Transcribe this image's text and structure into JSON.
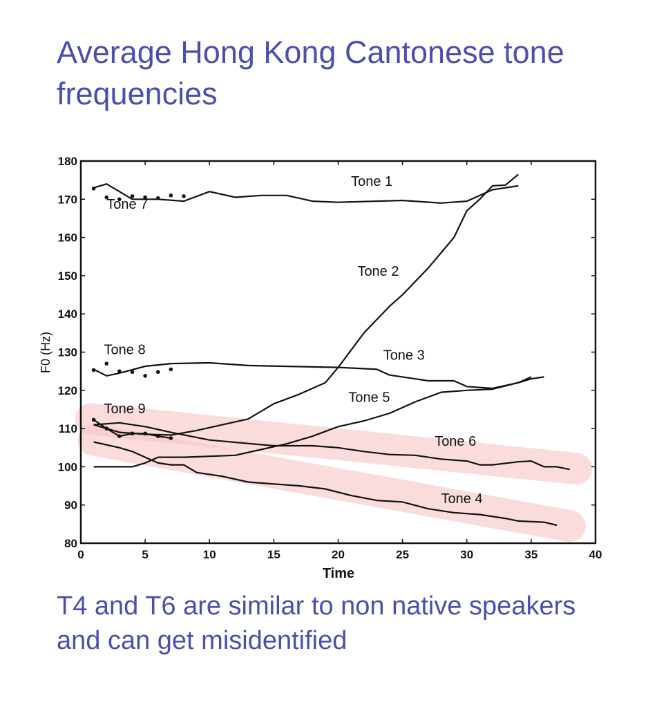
{
  "slide": {
    "title": "Average Hong Kong Cantonese tone frequencies",
    "caption": "T4 and T6 are similar to non native speakers and can get misidentified",
    "text_color": "#4a4fae",
    "highlight_color": "#f9c6c6"
  },
  "chart_data": {
    "type": "line",
    "title": "",
    "xlabel": "Time",
    "ylabel": "F0 (Hz)",
    "xlim": [
      0,
      40
    ],
    "ylim": [
      80,
      180
    ],
    "xticks": [
      0,
      5,
      10,
      15,
      20,
      25,
      30,
      35,
      40
    ],
    "yticks": [
      80,
      90,
      100,
      110,
      120,
      130,
      140,
      150,
      160,
      170,
      180
    ],
    "grid": false,
    "series": [
      {
        "name": "Tone 1",
        "style": "line",
        "label_at": [
          21,
          173.5
        ],
        "x": [
          1,
          2,
          3,
          4,
          6,
          8,
          10,
          12,
          14,
          16,
          18,
          20,
          25,
          28,
          30,
          32,
          34
        ],
        "y": [
          173,
          174,
          172,
          170,
          170,
          169.5,
          172,
          170.5,
          171,
          171,
          169.5,
          169.2,
          169.7,
          169,
          169.5,
          172.5,
          173.5
        ]
      },
      {
        "name": "Tone 7",
        "style": "dots",
        "label_at": [
          2,
          167.5
        ],
        "x": [
          1,
          2,
          3,
          4,
          5,
          6,
          7,
          8
        ],
        "y": [
          172.8,
          170.5,
          170,
          170.8,
          170.5,
          170.3,
          171,
          170.8
        ]
      },
      {
        "name": "Tone 2",
        "style": "line",
        "label_at": [
          21.5,
          150
        ],
        "x": [
          1,
          3,
          5,
          7,
          9,
          11,
          13,
          15,
          17,
          19,
          20,
          22,
          24,
          25,
          27,
          29,
          30,
          31,
          32,
          33,
          34
        ],
        "y": [
          111,
          109,
          108.5,
          108.3,
          109.5,
          111,
          112.5,
          116.5,
          119,
          122,
          126,
          135,
          142,
          145,
          152,
          160,
          167,
          170,
          173.5,
          173.7,
          176.5
        ]
      },
      {
        "name": "Tone 3",
        "style": "line",
        "label_at": [
          23.5,
          128
        ],
        "x": [
          1,
          2,
          3,
          5,
          7,
          10,
          13,
          20,
          23,
          24,
          26,
          27,
          29,
          30,
          32,
          34,
          35,
          36
        ],
        "y": [
          125.5,
          123.8,
          124.5,
          126.3,
          127,
          127.2,
          126.5,
          126,
          125.5,
          124,
          123,
          122.5,
          122.5,
          121,
          120.5,
          122,
          123,
          123.5
        ]
      },
      {
        "name": "Tone 8",
        "style": "dots",
        "label_at": [
          1.8,
          129.5
        ],
        "x": [
          1,
          2,
          3,
          4,
          5,
          6,
          7
        ],
        "y": [
          125.3,
          127,
          125,
          124.8,
          123.8,
          124.8,
          125.5
        ]
      },
      {
        "name": "Tone 5",
        "style": "line",
        "label_at": [
          20.8,
          117
        ],
        "x": [
          1,
          4,
          5,
          6,
          8,
          12,
          14,
          16,
          18,
          20,
          22,
          24,
          26,
          28,
          30,
          32,
          34,
          35
        ],
        "y": [
          100,
          100,
          101,
          102.5,
          102.5,
          103,
          104.5,
          106,
          108,
          110.5,
          112,
          114,
          117,
          119.5,
          120,
          120.3,
          122,
          123.5
        ]
      },
      {
        "name": "Tone 6",
        "style": "line",
        "label_at": [
          27.5,
          105.5
        ],
        "x": [
          1,
          3,
          5,
          7,
          10,
          15,
          18,
          20,
          22,
          24,
          26,
          28,
          30,
          31,
          32,
          34,
          35,
          36,
          37,
          38
        ],
        "y": [
          111,
          111.5,
          110.5,
          109,
          107,
          105.5,
          105.5,
          105,
          104,
          103.2,
          103,
          102,
          101.5,
          100.5,
          100.5,
          101.3,
          101.5,
          100,
          100,
          99.3
        ]
      },
      {
        "name": "Tone 9",
        "style": "line+dots",
        "label_at": [
          1.8,
          114
        ],
        "x": [
          1,
          2,
          3,
          4,
          5,
          6,
          7
        ],
        "y": [
          112.3,
          110,
          108,
          108.7,
          108.7,
          108,
          107.5
        ]
      },
      {
        "name": "Tone 4",
        "style": "line",
        "label_at": [
          28,
          90.5
        ],
        "x": [
          1,
          3,
          4,
          5,
          6,
          7,
          8,
          9,
          11,
          13,
          15,
          17,
          19,
          21,
          23,
          25,
          27,
          29,
          31,
          33,
          34,
          36,
          37
        ],
        "y": [
          106.5,
          105,
          104,
          102.5,
          101,
          100.5,
          100.5,
          98.5,
          97.5,
          96,
          95.5,
          95,
          94.2,
          92.5,
          91.2,
          90.8,
          89,
          88,
          87.5,
          86.5,
          85.8,
          85.5,
          84.7
        ]
      }
    ],
    "highlights": [
      {
        "around": "Tone 6",
        "from": [
          0.8,
          112.5
        ],
        "to": [
          38.5,
          99.5
        ]
      },
      {
        "around": "Tone 4",
        "from": [
          1,
          107
        ],
        "to": [
          38,
          84.5
        ]
      }
    ]
  }
}
